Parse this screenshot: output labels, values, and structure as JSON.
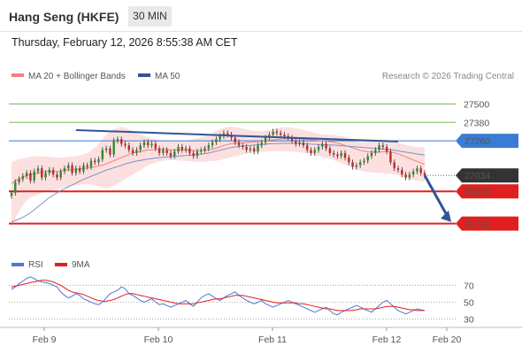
{
  "header": {
    "title": "Hang Seng (HKFE)",
    "timeframe": "30 MIN",
    "datetime": "Thursday, February 12, 2026 8:55:38 AM CET"
  },
  "chart_data": [
    {
      "type": "line",
      "role": "price",
      "legend": [
        {
          "name": "MA 20 + Bollinger Bands",
          "color": "#f08080"
        },
        {
          "name": "MA 50",
          "color": "#2f5597"
        }
      ],
      "credit": "Research © 2026 Trading Central",
      "y_axis": {
        "min": 26550,
        "max": 27630,
        "position": "right"
      },
      "x_axis": {
        "tick_labels": [
          "Feb 9",
          "Feb 10",
          "Feb 11",
          "Feb 12",
          "Feb 20"
        ]
      },
      "last_price": {
        "value": 27034,
        "label": "27034",
        "color": "#333333"
      },
      "levels": [
        {
          "value": 27500,
          "label": "27500",
          "kind": "resistance",
          "color": "#7dbb5a"
        },
        {
          "value": 27380,
          "label": "27380",
          "kind": "resistance",
          "color": "#7dbb5a"
        },
        {
          "value": 27260,
          "label": "27260",
          "kind": "pivot",
          "color": "#3a7bd5"
        },
        {
          "value": 26930,
          "label": "26930",
          "kind": "support",
          "color": "#e02020"
        },
        {
          "value": 26720,
          "label": "26720",
          "kind": "support",
          "color": "#e02020"
        }
      ],
      "close": [
        26920,
        26990,
        27010,
        27030,
        27050,
        27000,
        27060,
        27080,
        27020,
        27050,
        27070,
        27040,
        27020,
        27060,
        27080,
        27100,
        27050,
        27080,
        27060,
        27100,
        27090,
        27130,
        27120,
        27140,
        27200,
        27210,
        27170,
        27260,
        27270,
        27240,
        27230,
        27200,
        27180,
        27200,
        27230,
        27250,
        27230,
        27240,
        27210,
        27180,
        27200,
        27180,
        27160,
        27190,
        27220,
        27200,
        27210,
        27180,
        27160,
        27190,
        27200,
        27210,
        27230,
        27250,
        27270,
        27290,
        27310,
        27300,
        27280,
        27250,
        27230,
        27220,
        27200,
        27210,
        27190,
        27230,
        27250,
        27280,
        27300,
        27320,
        27310,
        27300,
        27290,
        27280,
        27260,
        27240,
        27250,
        27230,
        27200,
        27180,
        27200,
        27220,
        27240,
        27210,
        27180,
        27170,
        27160,
        27180,
        27150,
        27120,
        27090,
        27100,
        27120,
        27130,
        27160,
        27180,
        27200,
        27230,
        27220,
        27190,
        27120,
        27080,
        27070,
        27040,
        27020,
        27040,
        27060,
        27080,
        27050,
        27034
      ],
      "ma20": [
        26980,
        27000,
        27010,
        27020,
        27035,
        27040,
        27045,
        27050,
        27055,
        27060,
        27060,
        27060,
        27060,
        27063,
        27068,
        27070,
        27072,
        27075,
        27078,
        27080,
        27082,
        27085,
        27090,
        27095,
        27100,
        27110,
        27120,
        27130,
        27140,
        27150,
        27160,
        27170,
        27180,
        27185,
        27190,
        27195,
        27200,
        27200,
        27205,
        27205,
        27205,
        27205,
        27200,
        27200,
        27200,
        27200,
        27200,
        27198,
        27196,
        27195,
        27196,
        27198,
        27200,
        27205,
        27212,
        27220,
        27230,
        27236,
        27240,
        27243,
        27245,
        27246,
        27248,
        27250,
        27252,
        27255,
        27258,
        27260,
        27263,
        27266,
        27268,
        27270,
        27272,
        27274,
        27275,
        27274,
        27272,
        27270,
        27268,
        27266,
        27265,
        27262,
        27260,
        27258,
        27254,
        27250,
        27244,
        27238,
        27230,
        27222,
        27214,
        27206,
        27198,
        27192,
        27188,
        27186,
        27186,
        27186,
        27188,
        27190,
        27188,
        27182,
        27175,
        27165,
        27155,
        27145,
        27135,
        27125,
        27115,
        27105
      ],
      "bb_upper": [
        27120,
        27130,
        27140,
        27145,
        27150,
        27155,
        27160,
        27160,
        27160,
        27158,
        27155,
        27152,
        27150,
        27150,
        27152,
        27155,
        27158,
        27160,
        27165,
        27170,
        27180,
        27195,
        27215,
        27240,
        27270,
        27300,
        27320,
        27335,
        27345,
        27350,
        27345,
        27335,
        27325,
        27312,
        27300,
        27290,
        27282,
        27276,
        27270,
        27265,
        27262,
        27260,
        27258,
        27256,
        27256,
        27258,
        27262,
        27266,
        27270,
        27276,
        27282,
        27290,
        27300,
        27312,
        27325,
        27336,
        27345,
        27350,
        27352,
        27350,
        27346,
        27340,
        27334,
        27330,
        27326,
        27324,
        27324,
        27326,
        27330,
        27336,
        27342,
        27346,
        27348,
        27348,
        27346,
        27342,
        27336,
        27330,
        27324,
        27318,
        27312,
        27306,
        27302,
        27300,
        27298,
        27296,
        27294,
        27290,
        27284,
        27276,
        27266,
        27256,
        27250,
        27250,
        27256,
        27262,
        27266,
        27268,
        27268,
        27266,
        27262,
        27256,
        27248,
        27240,
        27232,
        27226,
        27222,
        27220,
        27218,
        27216
      ],
      "bb_lower": [
        26700,
        26750,
        26800,
        26840,
        26870,
        26890,
        26900,
        26910,
        26920,
        26930,
        26935,
        26940,
        26945,
        26950,
        26955,
        26960,
        26965,
        26970,
        26972,
        26975,
        26975,
        26972,
        26968,
        26963,
        26955,
        26950,
        26955,
        26965,
        26980,
        26995,
        27010,
        27025,
        27040,
        27055,
        27070,
        27085,
        27100,
        27110,
        27118,
        27125,
        27130,
        27132,
        27134,
        27134,
        27132,
        27130,
        27128,
        27126,
        27124,
        27122,
        27122,
        27124,
        27126,
        27128,
        27130,
        27134,
        27140,
        27146,
        27152,
        27158,
        27164,
        27170,
        27176,
        27180,
        27184,
        27186,
        27188,
        27190,
        27192,
        27192,
        27192,
        27192,
        27192,
        27192,
        27190,
        27188,
        27186,
        27182,
        27178,
        27172,
        27166,
        27160,
        27154,
        27148,
        27142,
        27134,
        27124,
        27114,
        27104,
        27094,
        27084,
        27074,
        27066,
        27060,
        27056,
        27054,
        27052,
        27050,
        27048,
        27046,
        27044,
        27040,
        27034,
        27026,
        27018,
        27010,
        27004,
        27000,
        26996,
        26994
      ],
      "ma50": [
        26730,
        26740,
        26750,
        26760,
        26775,
        26790,
        26810,
        26830,
        26850,
        26870,
        26890,
        26905,
        26920,
        26935,
        26948,
        26960,
        26972,
        26984,
        26996,
        27008,
        27018,
        27028,
        27038,
        27048,
        27058,
        27068,
        27076,
        27084,
        27092,
        27100,
        27108,
        27116,
        27122,
        27128,
        27132,
        27136,
        27140,
        27144,
        27148,
        27150,
        27152,
        27154,
        27156,
        27158,
        27160,
        27162,
        27164,
        27166,
        27168,
        27170,
        27172,
        27176,
        27180,
        27186,
        27192,
        27198,
        27204,
        27210,
        27216,
        27220,
        27224,
        27226,
        27228,
        27230,
        27232,
        27234,
        27236,
        27238,
        27240,
        27241,
        27242,
        27243,
        27243,
        27243,
        27243,
        27242,
        27241,
        27240,
        27239,
        27238,
        27237,
        27236,
        27235,
        27234,
        27233,
        27232,
        27230,
        27228,
        27226,
        27224,
        27222,
        27220,
        27218,
        27216,
        27214,
        27212,
        27210,
        27208,
        27206,
        27204,
        27202,
        27198,
        27194,
        27190,
        27186,
        27182,
        27178,
        27174,
        27170,
        27166
      ],
      "trendline": {
        "from": [
          27330,
          27300
        ],
        "to": [
          27250,
          27255
        ]
      },
      "forecast_arrow": {
        "from": 27034,
        "to": 26730
      }
    },
    {
      "type": "line",
      "role": "rsi",
      "legend": [
        {
          "name": "RSI",
          "color": "#4a78d6"
        },
        {
          "name": "9MA",
          "color": "#e02020"
        }
      ],
      "y_axis": {
        "min": 20,
        "max": 85,
        "ticks": [
          {
            "value": 70,
            "label": "70"
          },
          {
            "value": 50,
            "label": "50"
          },
          {
            "value": 30,
            "label": "30"
          }
        ]
      },
      "rsi": [
        65,
        68,
        72,
        75,
        78,
        80,
        78,
        75,
        74,
        73,
        72,
        70,
        68,
        62,
        58,
        55,
        57,
        60,
        58,
        54,
        52,
        50,
        48,
        47,
        50,
        55,
        60,
        62,
        64,
        68,
        66,
        60,
        58,
        55,
        52,
        50,
        52,
        54,
        50,
        47,
        48,
        46,
        44,
        46,
        48,
        50,
        52,
        48,
        45,
        50,
        55,
        58,
        60,
        57,
        54,
        52,
        55,
        58,
        60,
        62,
        58,
        55,
        52,
        50,
        48,
        50,
        52,
        48,
        46,
        44,
        46,
        48,
        50,
        52,
        50,
        48,
        46,
        44,
        42,
        40,
        38,
        40,
        42,
        44,
        40,
        36,
        35,
        38,
        40,
        42,
        44,
        46,
        44,
        42,
        40,
        38,
        42,
        46,
        50,
        52,
        48,
        44,
        40,
        38,
        36,
        38,
        40,
        42,
        41,
        40
      ],
      "ma9": [
        68,
        69,
        70,
        71,
        72,
        73,
        74,
        75,
        76,
        76,
        75,
        74,
        72,
        70,
        67,
        64,
        62,
        61,
        60,
        59,
        57,
        55,
        53,
        52,
        51,
        51,
        52,
        53,
        55,
        57,
        59,
        60,
        60,
        59,
        58,
        57,
        56,
        55,
        54,
        53,
        52,
        51,
        50,
        49,
        48,
        48,
        48,
        48,
        48,
        49,
        50,
        51,
        52,
        53,
        54,
        54,
        55,
        56,
        57,
        58,
        58,
        58,
        57,
        56,
        55,
        54,
        53,
        52,
        51,
        50,
        49,
        49,
        49,
        49,
        49,
        49,
        48,
        48,
        47,
        46,
        45,
        44,
        43,
        42,
        42,
        41,
        40,
        40,
        40,
        40,
        40,
        41,
        42,
        42,
        42,
        42,
        42,
        43,
        44,
        45,
        45,
        45,
        44,
        43,
        42,
        41,
        41,
        40,
        40,
        40
      ]
    }
  ]
}
